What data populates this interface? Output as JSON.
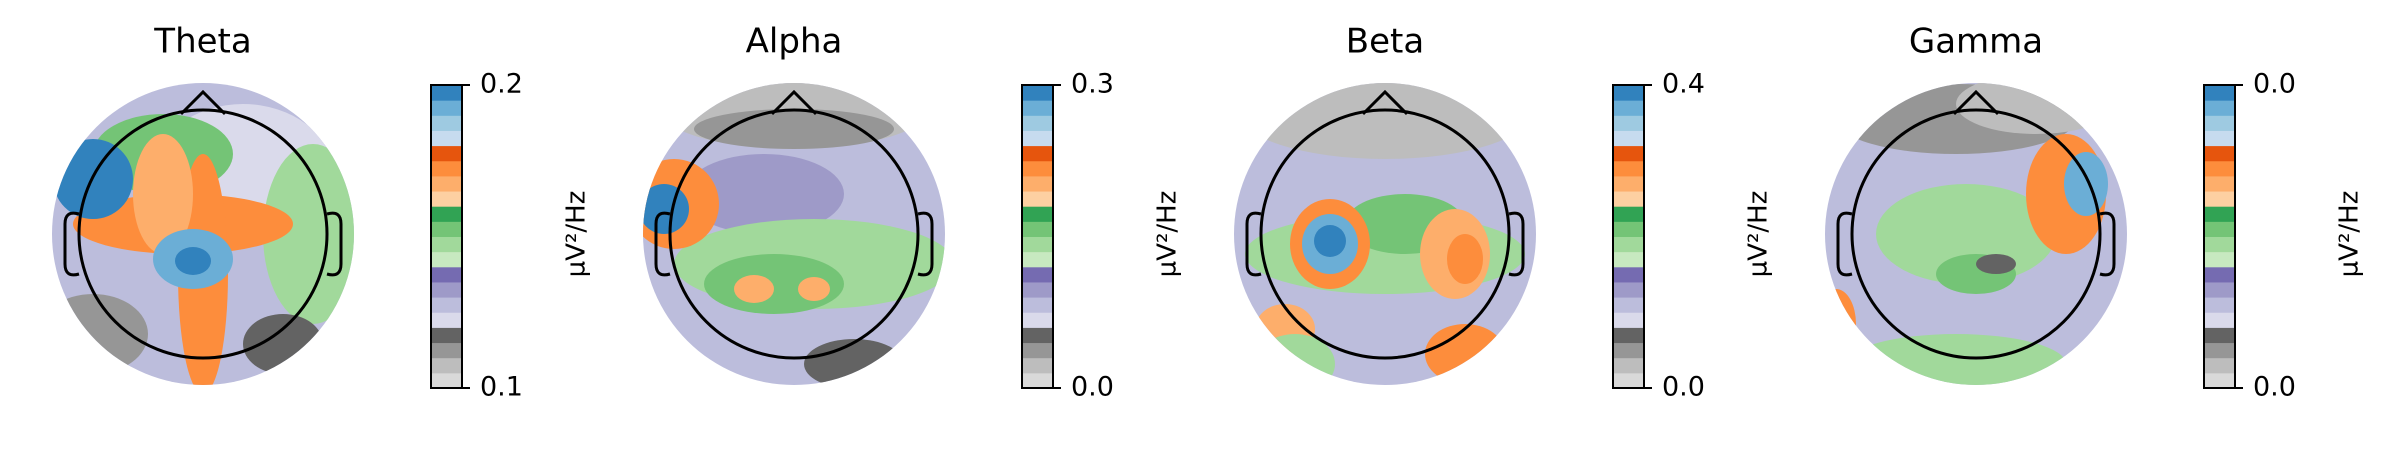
{
  "chart_data": [
    {
      "type": "topomap",
      "title": "Theta",
      "colorbar_label": "µV²/Hz",
      "ylim": [
        0.1,
        0.2
      ],
      "yticks": [
        0.1,
        0.2
      ]
    },
    {
      "type": "topomap",
      "title": "Alpha",
      "colorbar_label": "µV²/Hz",
      "ylim": [
        {
          "value": 0,
          "label": "0.0"
        },
        0.3
      ],
      "yticks": [
        {
          "value": 0,
          "label": "0.0"
        },
        0.3
      ]
    },
    {
      "type": "topomap",
      "title": "Beta",
      "colorbar_label": "µV²/Hz",
      "ylim": [
        {
          "value": 0,
          "label": "0.0"
        },
        0.4
      ],
      "yticks": [
        {
          "value": 0,
          "label": "0.0"
        },
        0.4
      ]
    },
    {
      "type": "topomap",
      "title": "Gamma",
      "colorbar_label": "µV²/Hz",
      "ylim": [
        {
          "value": 0.01,
          "label": "0.0"
        },
        {
          "value": 0.04,
          "label": "0.0"
        }
      ],
      "yticks": [
        {
          "value": 0.01,
          "label": "0.0"
        },
        {
          "value": 0.04,
          "label": "0.0"
        }
      ]
    }
  ]
}
